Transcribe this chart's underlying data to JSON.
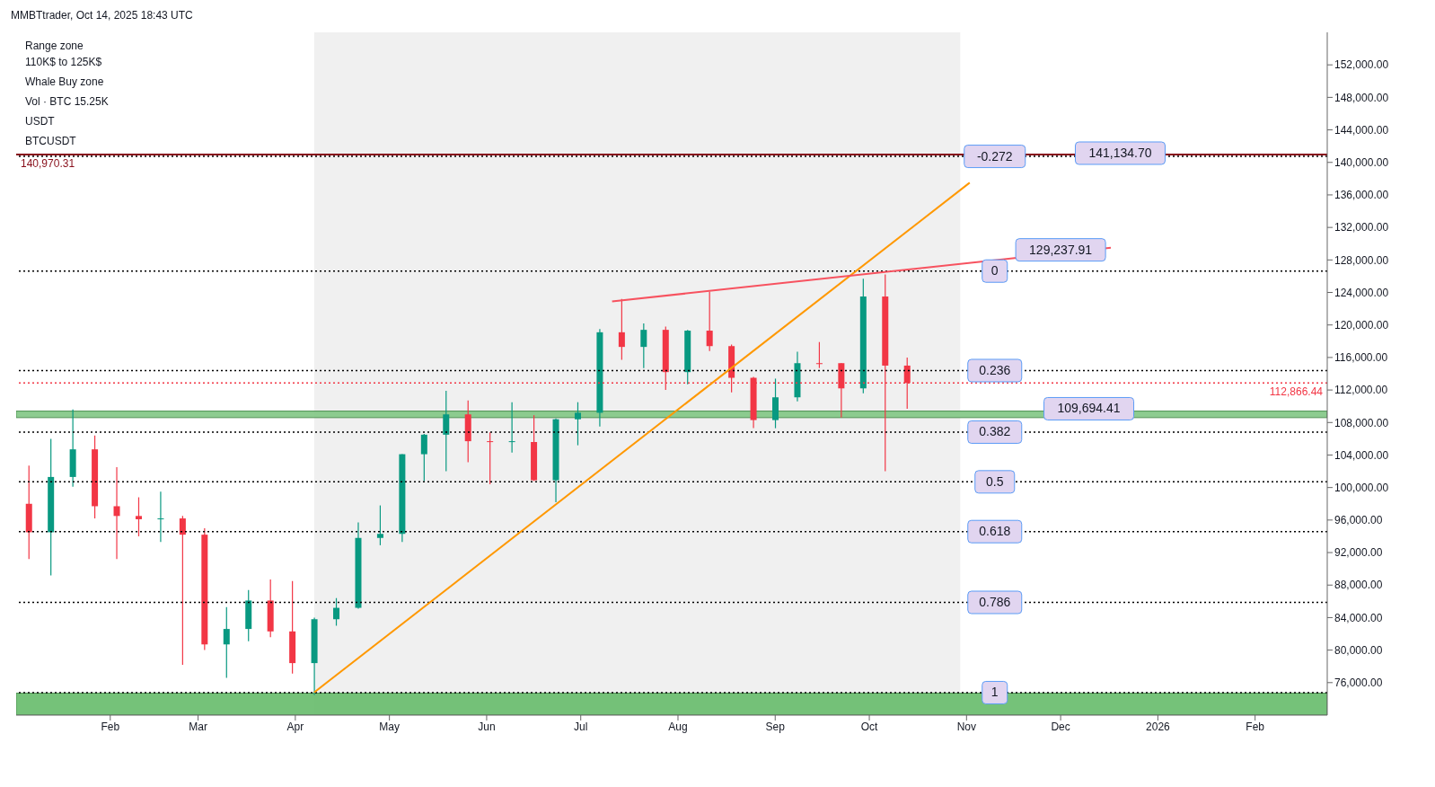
{
  "chart_data": {
    "type": "candlestick",
    "title": "MMBTtrader, Oct 14, 2025 18:43 UTC",
    "x": [
      "2025-01-06",
      "2025-01-13",
      "2025-01-20",
      "2025-01-27",
      "2025-02-03",
      "2025-02-10",
      "2025-02-17",
      "2025-02-24",
      "2025-03-03",
      "2025-03-10",
      "2025-03-17",
      "2025-03-24",
      "2025-03-31",
      "2025-04-07",
      "2025-04-14",
      "2025-04-21",
      "2025-04-28",
      "2025-05-05",
      "2025-05-12",
      "2025-05-19",
      "2025-05-26",
      "2025-06-02",
      "2025-06-09",
      "2025-06-16",
      "2025-06-23",
      "2025-06-30",
      "2025-07-07",
      "2025-07-14",
      "2025-07-21",
      "2025-07-28",
      "2025-08-04",
      "2025-08-11",
      "2025-08-18",
      "2025-08-25",
      "2025-09-01",
      "2025-09-08",
      "2025-09-15",
      "2025-09-22",
      "2025-09-29",
      "2025-10-06",
      "2025-10-13"
    ],
    "ohlc": [
      [
        98000,
        102700,
        91200,
        94500
      ],
      [
        94500,
        106000,
        89200,
        101300
      ],
      [
        101300,
        109600,
        100100,
        104700
      ],
      [
        104700,
        106400,
        96200,
        97700
      ],
      [
        97700,
        102500,
        91200,
        96500
      ],
      [
        96500,
        98800,
        94000,
        96100
      ],
      [
        96100,
        99500,
        93300,
        96200
      ],
      [
        96200,
        96500,
        78200,
        94200
      ],
      [
        94200,
        95000,
        80000,
        80700
      ],
      [
        80700,
        85300,
        76600,
        82600
      ],
      [
        82600,
        87400,
        81100,
        86100
      ],
      [
        86100,
        88700,
        81600,
        82300
      ],
      [
        82300,
        88500,
        77100,
        78400
      ],
      [
        78400,
        84000,
        74500,
        83800
      ],
      [
        83800,
        86400,
        83000,
        85200
      ],
      [
        85200,
        95700,
        85100,
        93800
      ],
      [
        93800,
        97800,
        92900,
        94300
      ],
      [
        94300,
        104100,
        93300,
        104100
      ],
      [
        104100,
        106600,
        100800,
        106500
      ],
      [
        106500,
        111900,
        102000,
        109000
      ],
      [
        109000,
        110700,
        103100,
        105700
      ],
      [
        105700,
        106800,
        100400,
        105600
      ],
      [
        105600,
        110500,
        104300,
        105700
      ],
      [
        105600,
        108900,
        100800,
        100900
      ],
      [
        100900,
        108500,
        98200,
        108400
      ],
      [
        108400,
        110500,
        105200,
        109200
      ],
      [
        109200,
        119500,
        107500,
        119100
      ],
      [
        119100,
        123200,
        115700,
        117300
      ],
      [
        117300,
        120200,
        114700,
        119400
      ],
      [
        119400,
        119800,
        112000,
        114200
      ],
      [
        114200,
        119400,
        112700,
        119300
      ],
      [
        119300,
        124100,
        116800,
        117400
      ],
      [
        117400,
        117600,
        111700,
        113500
      ],
      [
        113500,
        113600,
        107300,
        108300
      ],
      [
        108300,
        113400,
        107300,
        111100
      ],
      [
        111100,
        116700,
        110600,
        115300
      ],
      [
        115300,
        117900,
        114700,
        115300
      ],
      [
        115300,
        115300,
        108600,
        112200
      ],
      [
        112200,
        125700,
        111600,
        123500
      ],
      [
        123500,
        126200,
        102000,
        115000
      ],
      [
        115000,
        116000,
        109700,
        112866.44
      ]
    ],
    "colors": [
      "#f23645",
      "#089981",
      "#089981",
      "#f23645",
      "#f23645",
      "#f23645",
      "#089981",
      "#f23645",
      "#f23645",
      "#089981",
      "#089981",
      "#f23645",
      "#f23645",
      "#089981",
      "#089981",
      "#089981",
      "#089981",
      "#089981",
      "#089981",
      "#089981",
      "#f23645",
      "#f23645",
      "#089981",
      "#f23645",
      "#089981",
      "#089981",
      "#089981",
      "#f23645",
      "#089981",
      "#f23645",
      "#089981",
      "#f23645",
      "#f23645",
      "#f23645",
      "#089981",
      "#089981",
      "#f23645",
      "#f23645",
      "#089981",
      "#f23645",
      "#f23645"
    ],
    "series": [
      {
        "type": "line",
        "x": [
          "2025-04-07",
          "2025-11-02"
        ],
        "values": [
          74800,
          137500
        ],
        "color": "#ff9800"
      },
      {
        "type": "line",
        "x": [
          "2025-07-11",
          "2025-12-17"
        ],
        "values": [
          122900,
          129500
        ],
        "color": "#f7525f"
      }
    ],
    "xlim": [
      "2025-01-02",
      "2026-02-24"
    ],
    "xticks": [
      {
        "value": "2025-02-01",
        "label": "Feb"
      },
      {
        "value": "2025-03-01",
        "label": "Mar"
      },
      {
        "value": "2025-04-01",
        "label": "Apr"
      },
      {
        "value": "2025-05-01",
        "label": "May"
      },
      {
        "value": "2025-06-01",
        "label": "Jun"
      },
      {
        "value": "2025-07-01",
        "label": "Jul"
      },
      {
        "value": "2025-08-01",
        "label": "Aug"
      },
      {
        "value": "2025-09-01",
        "label": "Sep"
      },
      {
        "value": "2025-10-01",
        "label": "Oct"
      },
      {
        "value": "2025-11-01",
        "label": "Nov"
      },
      {
        "value": "2025-12-01",
        "label": "Dec"
      },
      {
        "value": "2026-01-01",
        "label": "2026"
      },
      {
        "value": "2026-02-01",
        "label": "Feb"
      }
    ],
    "ylim": [
      72000,
      156000
    ],
    "yticks": [
      {
        "value": 76000,
        "label": "76,000.00"
      },
      {
        "value": 80000,
        "label": "80,000.00"
      },
      {
        "value": 84000,
        "label": "84,000.00"
      },
      {
        "value": 88000,
        "label": "88,000.00"
      },
      {
        "value": 92000,
        "label": "92,000.00"
      },
      {
        "value": 96000,
        "label": "96,000.00"
      },
      {
        "value": 100000,
        "label": "100,000.00"
      },
      {
        "value": 104000,
        "label": "104,000.00"
      },
      {
        "value": 108000,
        "label": "108,000.00"
      },
      {
        "value": 112000,
        "label": "112,000.00"
      },
      {
        "value": 116000,
        "label": "116,000.00"
      },
      {
        "value": 120000,
        "label": "120,000.00"
      },
      {
        "value": 124000,
        "label": "124,000.00"
      },
      {
        "value": 128000,
        "label": "128,000.00"
      },
      {
        "value": 132000,
        "label": "132,000.00"
      },
      {
        "value": 136000,
        "label": "136,000.00"
      },
      {
        "value": 140000,
        "label": "140,000.00"
      },
      {
        "value": 144000,
        "label": "144,000.00"
      },
      {
        "value": 148000,
        "label": "148,000.00"
      },
      {
        "value": 152000,
        "label": "152,000.00"
      }
    ],
    "ref_lines": [
      {
        "axis": "y",
        "value": 140740,
        "color": "#000000",
        "line_style": "dotted"
      },
      {
        "axis": "y",
        "value": 126630,
        "color": "#000000",
        "line_style": "dotted"
      },
      {
        "axis": "y",
        "value": 114390,
        "color": "#000000",
        "line_style": "dotted"
      },
      {
        "axis": "y",
        "value": 106820,
        "color": "#000000",
        "line_style": "dotted"
      },
      {
        "axis": "y",
        "value": 100700,
        "color": "#000000",
        "line_style": "dotted"
      },
      {
        "axis": "y",
        "value": 94580,
        "color": "#000000",
        "line_style": "dotted"
      },
      {
        "axis": "y",
        "value": 85870,
        "color": "#000000",
        "line_style": "dotted"
      },
      {
        "axis": "y",
        "value": 74770,
        "color": "#000000",
        "line_style": "dotted"
      },
      {
        "axis": "y",
        "value": 140970.31,
        "label": "140,970.31",
        "color": "#880e1a",
        "line_style": "solid"
      },
      {
        "axis": "y",
        "value": 112866.44,
        "label": "112,866.44",
        "color": "#f23645",
        "line_style": "dotted"
      }
    ],
    "bands": [
      {
        "axis": "x",
        "from": "2025-04-07",
        "to": "2025-10-30",
        "label": null,
        "color": "#f0f0f0"
      },
      {
        "axis": "y",
        "from": 108600,
        "to": 109400,
        "label": null,
        "color": "#81c784"
      },
      {
        "axis": "y",
        "from": 72000,
        "to": 74700,
        "label": null,
        "color": "#66bb6a"
      }
    ],
    "annotations": [
      {
        "text": "-0.272",
        "x": "2025-11-10",
        "y": 140740
      },
      {
        "text": "0",
        "x": "2025-11-10",
        "y": 126630
      },
      {
        "text": "0.236",
        "x": "2025-11-10",
        "y": 114390
      },
      {
        "text": "0.382",
        "x": "2025-11-10",
        "y": 106820
      },
      {
        "text": "0.5",
        "x": "2025-11-10",
        "y": 100700
      },
      {
        "text": "0.618",
        "x": "2025-11-10",
        "y": 94580
      },
      {
        "text": "0.786",
        "x": "2025-11-10",
        "y": 85870
      },
      {
        "text": "1",
        "x": "2025-11-10",
        "y": 74770
      },
      "Range zone\n110K$ to 125K$",
      "Whale Buy zone",
      {
        "text": "141,134.70",
        "x": "2025-12-20",
        "y": 141134.7
      },
      {
        "text": "129,237.91",
        "x": "2025-12-01",
        "y": 129237.91
      },
      {
        "text": "109,694.41",
        "x": "2025-12-10",
        "y": 109694.41
      },
      "Vol · BTC 15.25K",
      "USDT",
      "BTCUSDT"
    ],
    "grid": false,
    "marker": "none"
  }
}
